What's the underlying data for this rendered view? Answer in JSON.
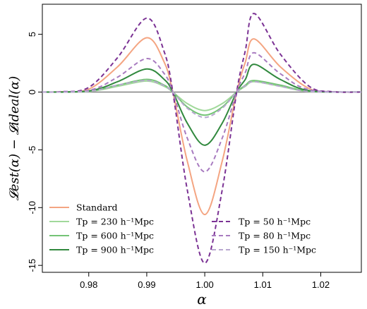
{
  "chart_data": {
    "type": "line",
    "xlabel": "α",
    "ylabel": "𝓛est(α) − 𝓛ideal(α)",
    "xlim": [
      0.972,
      1.027
    ],
    "ylim": [
      -15.6,
      7.6
    ],
    "xticks": [
      "0.98",
      "0.99",
      "1.00",
      "1.01",
      "1.02"
    ],
    "xtick_values": [
      0.98,
      0.99,
      1.0,
      1.01,
      1.02
    ],
    "yticks": [
      "-15",
      "-10",
      "-5",
      "0",
      "5"
    ],
    "ytick_values": [
      -15,
      -10,
      -5,
      0,
      5
    ],
    "zero_line": true,
    "series": [
      {
        "name": "Standard",
        "color": "#F4A582",
        "dash": "solid",
        "width": 2,
        "points": [
          [
            0.972,
            0
          ],
          [
            0.975,
            0.02
          ],
          [
            0.98,
            0.25
          ],
          [
            0.985,
            2.2
          ],
          [
            0.99,
            4.7
          ],
          [
            0.993,
            2.6
          ],
          [
            0.9945,
            0
          ],
          [
            0.997,
            -6.0
          ],
          [
            1.0,
            -10.6
          ],
          [
            1.003,
            -6.0
          ],
          [
            1.0055,
            0
          ],
          [
            1.007,
            2.6
          ],
          [
            1.0085,
            4.6
          ],
          [
            1.013,
            2.2
          ],
          [
            1.018,
            0.3
          ],
          [
            1.022,
            0.02
          ],
          [
            1.027,
            0
          ]
        ]
      },
      {
        "name": "T_p = 230 h⁻¹Mpc",
        "color": "#A1D99B",
        "dash": "solid",
        "width": 2,
        "points": [
          [
            0.972,
            0
          ],
          [
            0.98,
            0.05
          ],
          [
            0.985,
            0.5
          ],
          [
            0.99,
            0.95
          ],
          [
            0.993,
            0.5
          ],
          [
            0.9945,
            0
          ],
          [
            0.997,
            -1.0
          ],
          [
            1.0,
            -1.6
          ],
          [
            1.003,
            -1.0
          ],
          [
            1.0055,
            0
          ],
          [
            1.007,
            0.5
          ],
          [
            1.0085,
            0.9
          ],
          [
            1.013,
            0.5
          ],
          [
            1.018,
            0.05
          ],
          [
            1.027,
            0
          ]
        ]
      },
      {
        "name": "T_p = 600 h⁻¹Mpc",
        "color": "#74C476",
        "dash": "solid",
        "width": 2,
        "points": [
          [
            0.972,
            0
          ],
          [
            0.98,
            0.08
          ],
          [
            0.985,
            0.6
          ],
          [
            0.99,
            1.1
          ],
          [
            0.993,
            0.6
          ],
          [
            0.9945,
            0
          ],
          [
            0.997,
            -1.3
          ],
          [
            1.0,
            -2.0
          ],
          [
            1.003,
            -1.3
          ],
          [
            1.0055,
            0
          ],
          [
            1.007,
            0.6
          ],
          [
            1.0085,
            1.0
          ],
          [
            1.013,
            0.6
          ],
          [
            1.018,
            0.07
          ],
          [
            1.027,
            0
          ]
        ]
      },
      {
        "name": "T_p = 900 h⁻¹Mpc",
        "color": "#31893E",
        "dash": "solid",
        "width": 2,
        "points": [
          [
            0.972,
            0
          ],
          [
            0.98,
            0.1
          ],
          [
            0.985,
            0.9
          ],
          [
            0.99,
            2.0
          ],
          [
            0.993,
            1.1
          ],
          [
            0.9945,
            0
          ],
          [
            0.997,
            -2.7
          ],
          [
            1.0,
            -4.6
          ],
          [
            1.003,
            -2.7
          ],
          [
            1.0055,
            0
          ],
          [
            1.007,
            1.1
          ],
          [
            1.0085,
            2.4
          ],
          [
            1.013,
            1.1
          ],
          [
            1.018,
            0.12
          ],
          [
            1.027,
            0
          ]
        ]
      },
      {
        "name": "T_p =   50 h⁻¹Mpc",
        "color": "#7B3294",
        "dash": "6,4",
        "width": 2,
        "points": [
          [
            0.972,
            0
          ],
          [
            0.975,
            0.03
          ],
          [
            0.98,
            0.4
          ],
          [
            0.985,
            3.0
          ],
          [
            0.99,
            6.4
          ],
          [
            0.993,
            3.5
          ],
          [
            0.9945,
            0
          ],
          [
            0.997,
            -8.5
          ],
          [
            1.0,
            -14.8
          ],
          [
            1.003,
            -8.5
          ],
          [
            1.0055,
            0
          ],
          [
            1.007,
            3.6
          ],
          [
            1.0085,
            6.8
          ],
          [
            1.013,
            3.3
          ],
          [
            1.018,
            0.5
          ],
          [
            1.022,
            0.03
          ],
          [
            1.027,
            0
          ]
        ]
      },
      {
        "name": "T_p =   80 h⁻¹Mpc",
        "color": "#A87BC0",
        "dash": "6,4",
        "width": 2,
        "points": [
          [
            0.972,
            0
          ],
          [
            0.98,
            0.15
          ],
          [
            0.985,
            1.3
          ],
          [
            0.99,
            2.9
          ],
          [
            0.993,
            1.6
          ],
          [
            0.9945,
            0
          ],
          [
            0.997,
            -4.0
          ],
          [
            1.0,
            -6.9
          ],
          [
            1.003,
            -4.0
          ],
          [
            1.0055,
            0
          ],
          [
            1.007,
            1.7
          ],
          [
            1.0085,
            3.4
          ],
          [
            1.013,
            1.6
          ],
          [
            1.018,
            0.2
          ],
          [
            1.027,
            0
          ]
        ]
      },
      {
        "name": "T_p = 150 h⁻¹Mpc",
        "color": "#B8A7CF",
        "dash": "6,4",
        "width": 2,
        "points": [
          [
            0.972,
            0
          ],
          [
            0.98,
            0.07
          ],
          [
            0.985,
            0.6
          ],
          [
            0.99,
            1.0
          ],
          [
            0.993,
            0.55
          ],
          [
            0.9945,
            0
          ],
          [
            0.997,
            -1.4
          ],
          [
            1.0,
            -2.2
          ],
          [
            1.003,
            -1.4
          ],
          [
            1.0055,
            0
          ],
          [
            1.007,
            0.55
          ],
          [
            1.0085,
            0.9
          ],
          [
            1.013,
            0.5
          ],
          [
            1.018,
            0.05
          ],
          [
            1.027,
            0
          ]
        ]
      }
    ],
    "legend_left": [
      {
        "label": "Standard",
        "color": "#F4A582",
        "dash": "solid"
      },
      {
        "label": "Tp = 230 h⁻¹Mpc",
        "color": "#A1D99B",
        "dash": "solid"
      },
      {
        "label": "Tp = 600 h⁻¹Mpc",
        "color": "#74C476",
        "dash": "solid"
      },
      {
        "label": "Tp = 900 h⁻¹Mpc",
        "color": "#31893E",
        "dash": "solid"
      }
    ],
    "legend_right": [
      {
        "label": "Tp =   50 h⁻¹Mpc",
        "color": "#7B3294",
        "dash": "6,4"
      },
      {
        "label": "Tp =   80 h⁻¹Mpc",
        "color": "#A87BC0",
        "dash": "6,4"
      },
      {
        "label": "Tp = 150 h⁻¹Mpc",
        "color": "#B8A7CF",
        "dash": "6,4"
      }
    ]
  }
}
